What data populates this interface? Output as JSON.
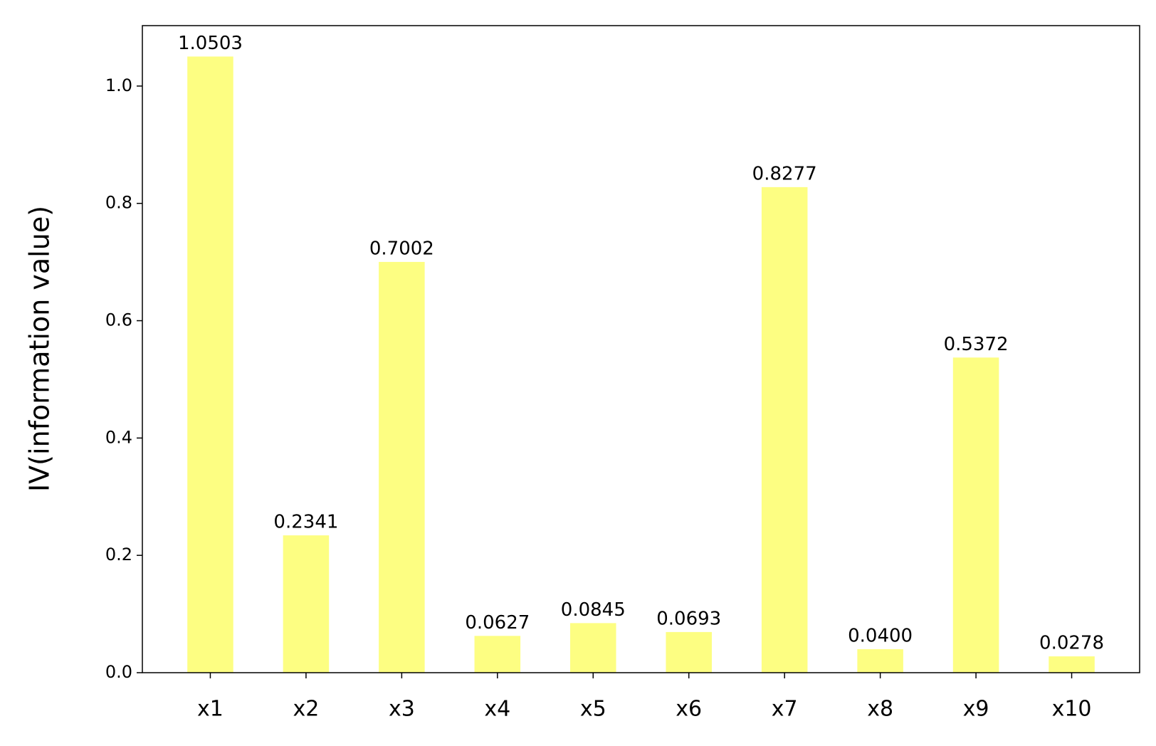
{
  "chart_data": {
    "type": "bar",
    "y_label": "IV(information value)",
    "categories": [
      "x1",
      "x2",
      "x3",
      "x4",
      "x5",
      "x6",
      "x7",
      "x8",
      "x9",
      "x10"
    ],
    "values": [
      1.0503,
      0.2341,
      0.7002,
      0.0627,
      0.0845,
      0.0693,
      0.8277,
      0.04,
      0.5372,
      0.0278
    ],
    "value_labels": [
      "1.0503",
      "0.2341",
      "0.7002",
      "0.0627",
      "0.0845",
      "0.0693",
      "0.8277",
      "0.0400",
      "0.5372",
      "0.0278"
    ],
    "color": "#fdfe82",
    "ylim": [
      0,
      1.103
    ],
    "yticks": [
      {
        "value": 0,
        "label": "0.0"
      },
      {
        "value": 0.2,
        "label": "0.2"
      },
      {
        "value": 0.4,
        "label": "0.4"
      },
      {
        "value": 0.6,
        "label": "0.6"
      },
      {
        "value": 0.8,
        "label": "0.8"
      },
      {
        "value": 1,
        "label": "1.0"
      }
    ],
    "grid": false
  }
}
